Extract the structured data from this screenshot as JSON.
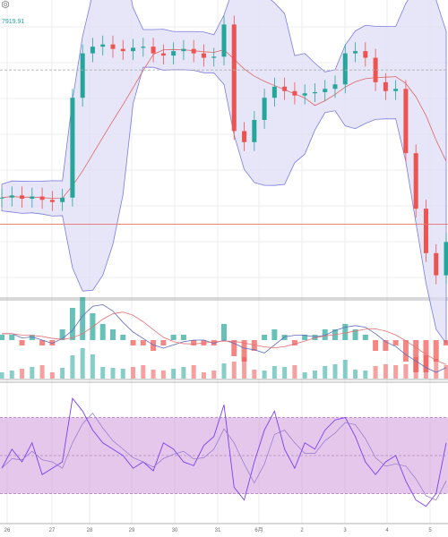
{
  "header": {
    "price_readout": "7919.91",
    "settings_icon": "gear-icon"
  },
  "x_axis": {
    "ticks": [
      "26",
      "27",
      "28",
      "29",
      "30",
      "31",
      "6月",
      "2",
      "3",
      "4",
      "5"
    ]
  },
  "colors": {
    "up": "#26a69a",
    "down": "#ef5350",
    "band_fill": "#dcdcf5",
    "band_line": "#7b7be0",
    "ma_line": "#e06666",
    "rsi_zone": "#c98fd6",
    "rsi_line1": "#7e3ff2",
    "rsi_line2": "#9575cd",
    "macd_line": "#5c6bc0",
    "signal_line": "#e57373",
    "grid": "#eeeeee",
    "divider": "#b0b0b0",
    "hline": "#e57373"
  },
  "chart_data": [
    {
      "type": "line",
      "name": "candlestick-price",
      "series": [
        {
          "name": "close",
          "values": [
            7500,
            7510,
            7495,
            7505,
            7490,
            7480,
            7500,
            7950,
            8150,
            8180,
            8190,
            8170,
            8160,
            8175,
            8180,
            8150,
            8140,
            8160,
            8170,
            8150,
            8130,
            8135,
            8280,
            7800,
            7750,
            7850,
            7950,
            8000,
            7980,
            7960,
            7970,
            7975,
            7990,
            8010,
            8150,
            8160,
            8130,
            8020,
            7980,
            7990,
            7700,
            7450,
            7250,
            7150,
            7300
          ]
        }
      ],
      "hlines": [
        8075,
        7380
      ]
    },
    {
      "type": "bar",
      "name": "volume-macd",
      "series": [
        {
          "name": "histogram",
          "values": [
            1,
            1,
            -1,
            1,
            -1,
            -1,
            2,
            6,
            8,
            5,
            3,
            2,
            1,
            -1,
            -1,
            -2,
            -1,
            1,
            1,
            -1,
            -1,
            -1,
            3,
            -3,
            -4,
            -2,
            1,
            2,
            1,
            -1,
            1,
            1,
            2,
            2,
            3,
            2,
            1,
            -2,
            -2,
            -1,
            -4,
            -6,
            -6,
            -4,
            -1
          ]
        }
      ]
    },
    {
      "type": "line",
      "name": "rsi",
      "series": [
        {
          "name": "rsi",
          "values": [
            40,
            55,
            45,
            60,
            35,
            40,
            45,
            95,
            85,
            70,
            60,
            55,
            50,
            40,
            45,
            38,
            60,
            55,
            45,
            42,
            58,
            65,
            90,
            25,
            15,
            45,
            70,
            85,
            55,
            40,
            60,
            55,
            70,
            78,
            80,
            65,
            45,
            35,
            45,
            50,
            30,
            15,
            10,
            20,
            60
          ]
        }
      ],
      "ylim": [
        0,
        100
      ]
    }
  ]
}
